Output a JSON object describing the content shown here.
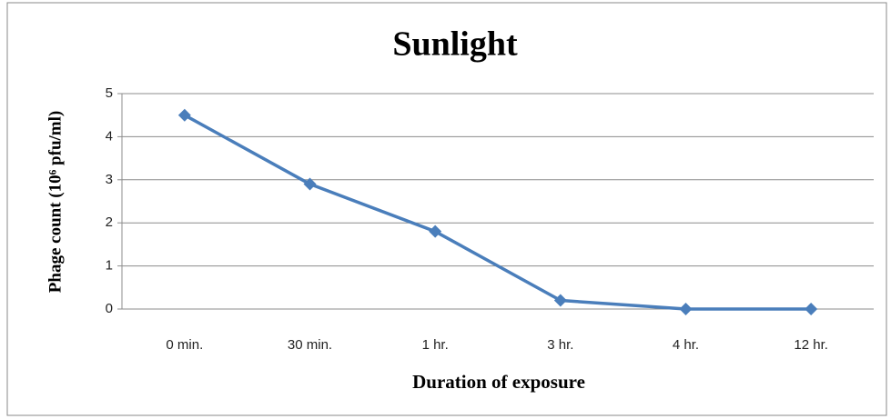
{
  "chart_data": {
    "type": "line",
    "title": "Sunlight",
    "x_label": "Duration of exposure",
    "y_label": "Phage count (10⁶ pfu/ml)",
    "categories": [
      "0 min.",
      "30 min.",
      "1 hr.",
      "3 hr.",
      "4 hr.",
      "12 hr."
    ],
    "values": [
      4.5,
      2.9,
      1.8,
      0.2,
      0,
      0
    ],
    "color": "#4a7ebb",
    "ylim": [
      0,
      5
    ],
    "yticks": [
      0,
      1,
      2,
      3,
      4,
      5
    ],
    "grid": true
  }
}
